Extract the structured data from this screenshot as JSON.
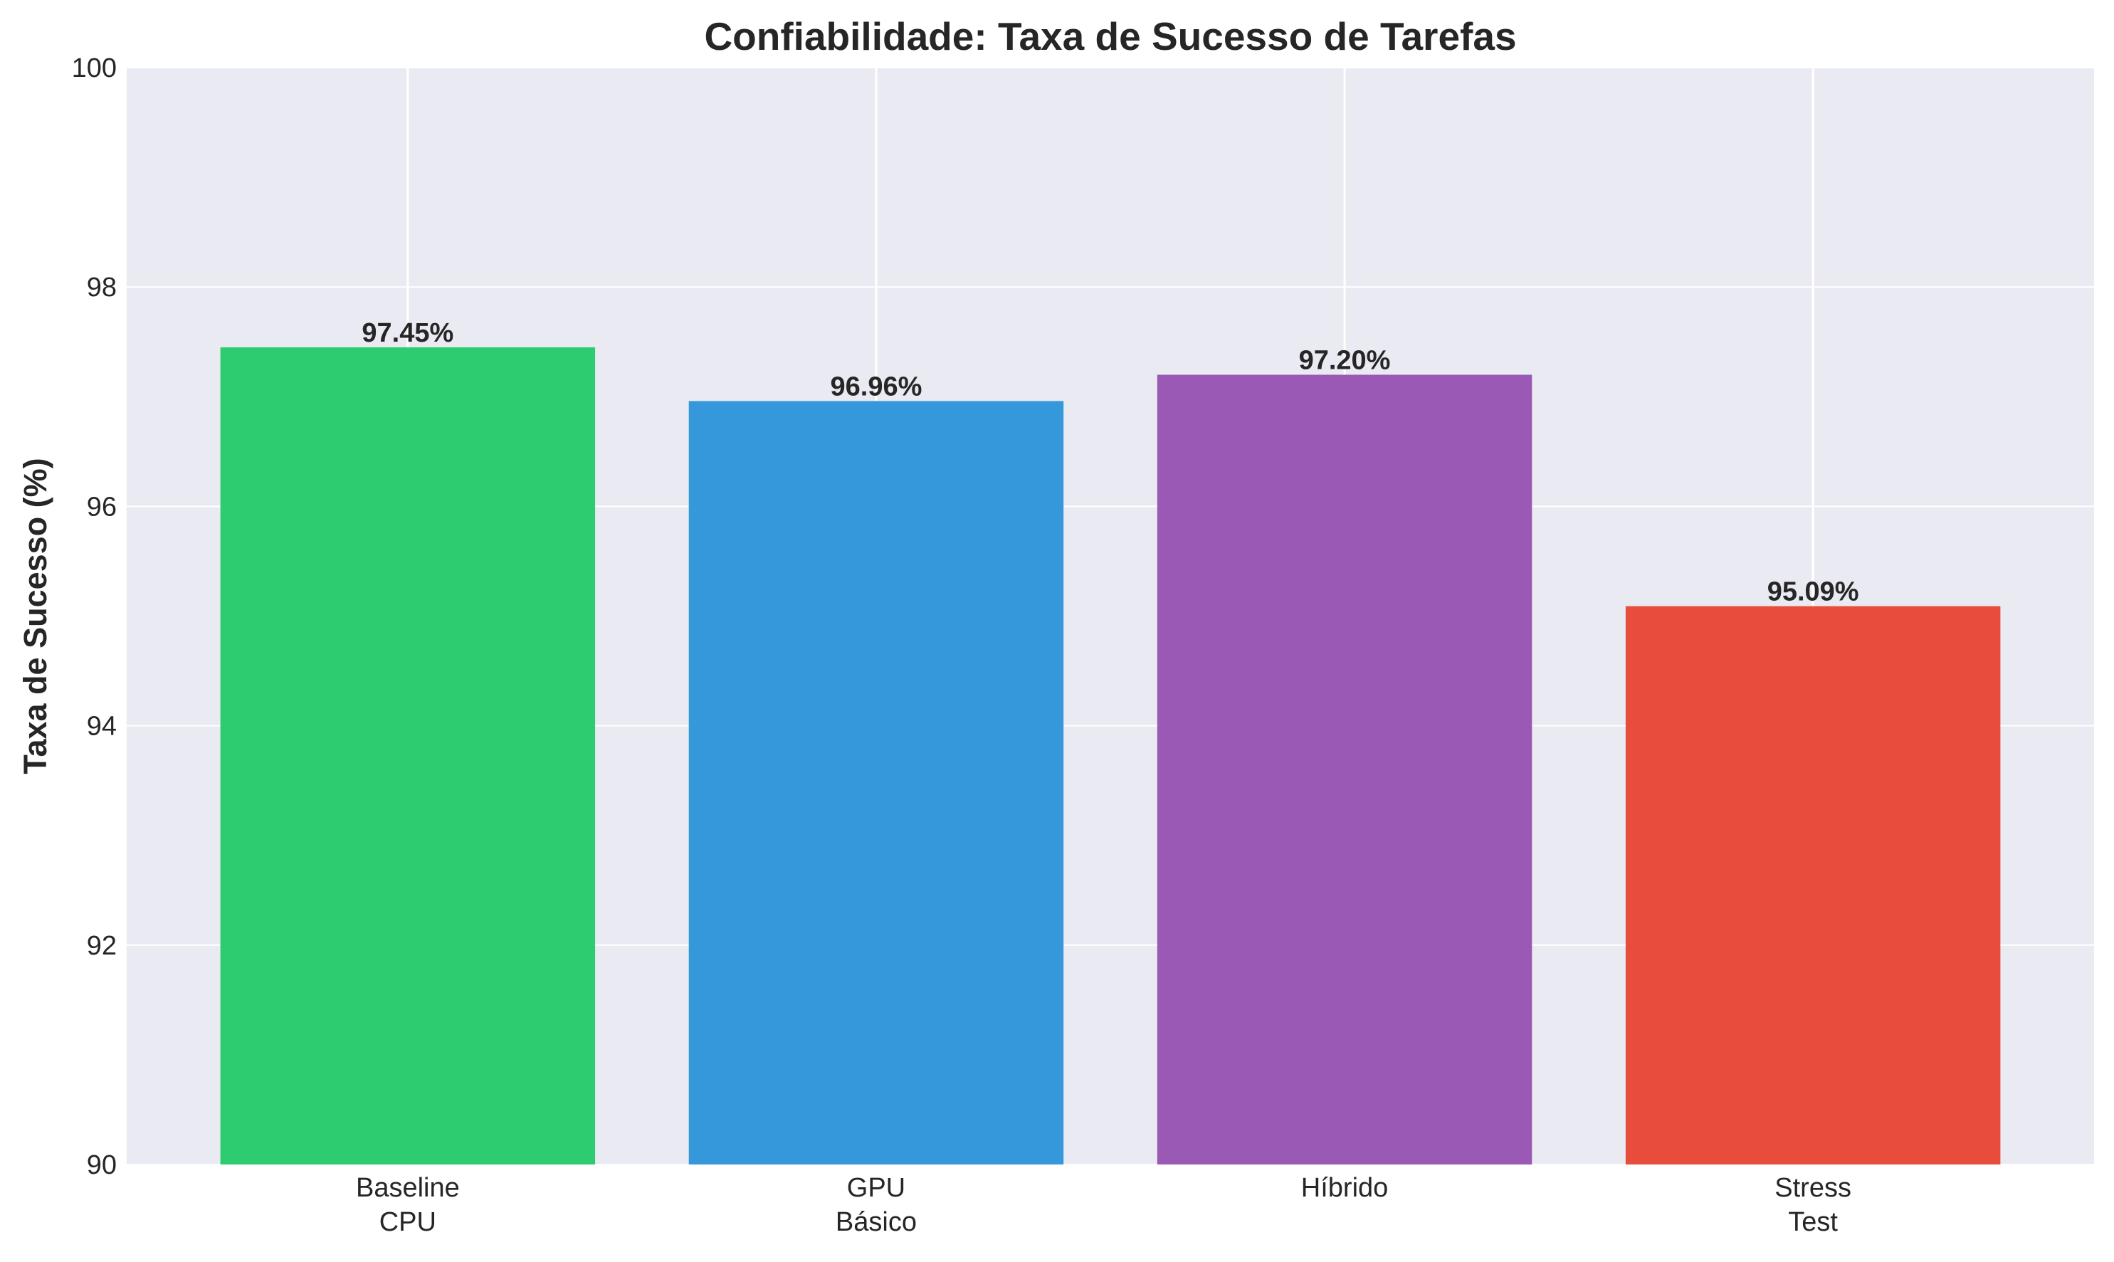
{
  "chart_data": {
    "type": "bar",
    "title": "Confiabilidade: Taxa de Sucesso de Tarefas",
    "xlabel": "",
    "ylabel": "Taxa de Sucesso (%)",
    "categories": [
      [
        "Baseline",
        "CPU"
      ],
      [
        "GPU",
        "Básico"
      ],
      [
        "Híbrido"
      ],
      [
        "Stress",
        "Test"
      ]
    ],
    "values": [
      97.45,
      96.96,
      97.2,
      95.09
    ],
    "value_labels": [
      "97.45%",
      "96.96%",
      "97.20%",
      "95.09%"
    ],
    "colors": [
      "#2ecc71",
      "#3498db",
      "#9b59b6",
      "#e74c3c"
    ],
    "ylim": [
      90,
      100
    ],
    "yticks": [
      90,
      92,
      94,
      96,
      98,
      100
    ],
    "ytick_labels": [
      "90",
      "92",
      "94",
      "96",
      "98",
      "100"
    ],
    "grid": true,
    "plot_background": "#eaeaf2",
    "grid_color": "#ffffff"
  }
}
